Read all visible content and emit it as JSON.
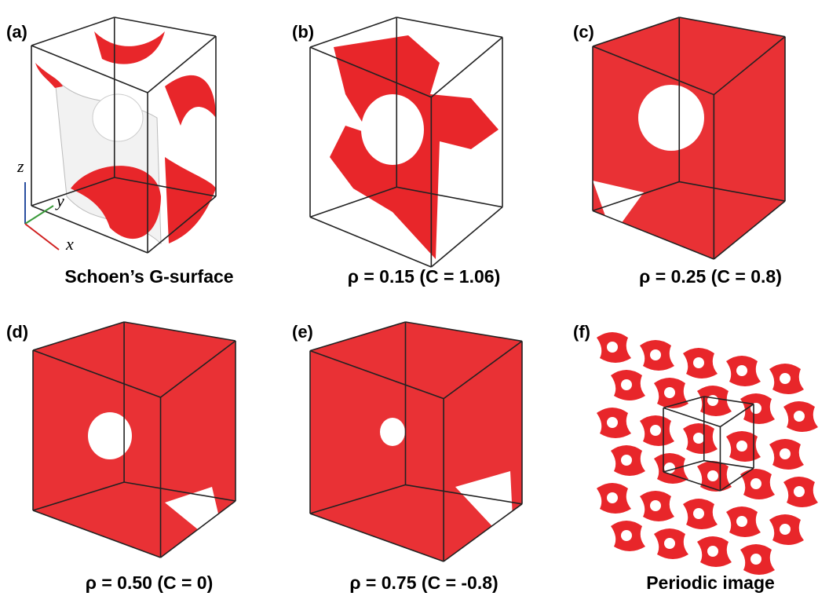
{
  "panels": [
    {
      "label": "(a)",
      "caption": "Schoen’s G-surface"
    },
    {
      "label": "(b)",
      "caption": "ρ = 0.15 (C = 1.06)"
    },
    {
      "label": "(c)",
      "caption": "ρ = 0.25 (C = 0.8)"
    },
    {
      "label": "(d)",
      "caption": "ρ = 0.50 (C = 0)"
    },
    {
      "label": "(e)",
      "caption": "ρ = 0.75 (C = -0.8)"
    },
    {
      "label": "(f)",
      "caption": "Periodic image"
    }
  ],
  "axes": {
    "z": "z",
    "y": "y",
    "x": "x"
  }
}
